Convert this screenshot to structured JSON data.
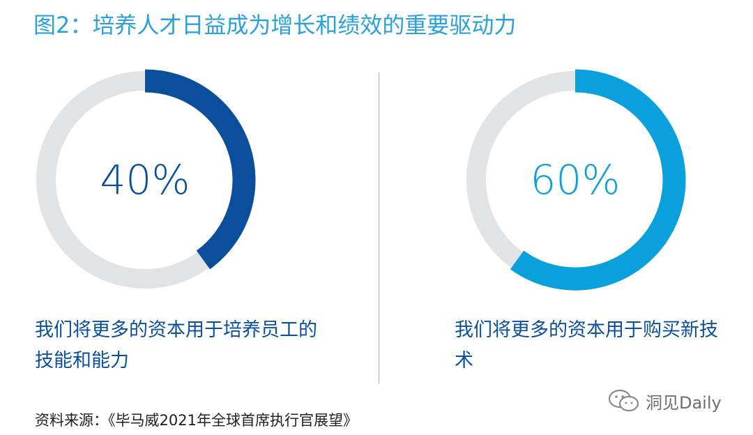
{
  "title": "图2：培养人才日益成为增长和绩效的重要驱动力",
  "colors": {
    "title": "#2aa1d9",
    "track": "#e2e3e5",
    "dark_blue": "#0b4f9c",
    "light_blue": "#0aa0dc",
    "text_blue": "#0b4f9c"
  },
  "chart_data": [
    {
      "type": "pie",
      "categories": [
        "我们将更多的资本用于培养员工的技能和能力"
      ],
      "values": [
        40
      ],
      "value_label": "40%",
      "unit": "%",
      "color": "#0b4f9c"
    },
    {
      "type": "pie",
      "categories": [
        "我们将更多的资本用于购买新技术"
      ],
      "values": [
        60
      ],
      "value_label": "60%",
      "unit": "%",
      "color": "#0aa0dc"
    }
  ],
  "source": "资料来源：《毕马威2021年全球首席执行官展望》",
  "watermark": {
    "icon": "wechat-icon",
    "text": "洞见Daily"
  }
}
